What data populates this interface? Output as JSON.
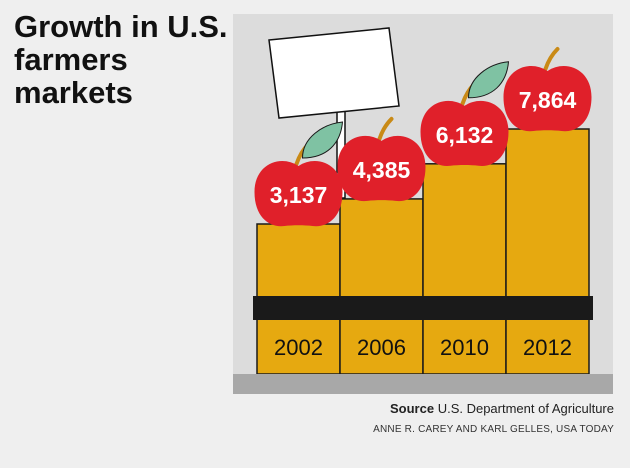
{
  "title": "Growth in U.S. farmers markets",
  "source_label": "Source",
  "source_text": "U.S. Department of Agriculture",
  "credit": "ANNE R. CAREY AND KARL GELLES, USA TODAY",
  "colors": {
    "bar": "#e6a910",
    "apple": "#e0202a",
    "leaf": "#7fc2a3",
    "band": "#1a1a1a",
    "ground": "#a8a8a8",
    "panel": "#dcdcdc"
  },
  "chart_data": {
    "type": "bar",
    "title": "Growth in U.S. farmers markets",
    "categories": [
      "2002",
      "2006",
      "2010",
      "2012"
    ],
    "values": [
      3137,
      4385,
      6132,
      7864
    ],
    "data_labels": [
      "3,137",
      "4,385",
      "6,132",
      "7,864"
    ],
    "ylim": [
      0,
      7864
    ],
    "grid": false,
    "legend": "none"
  }
}
